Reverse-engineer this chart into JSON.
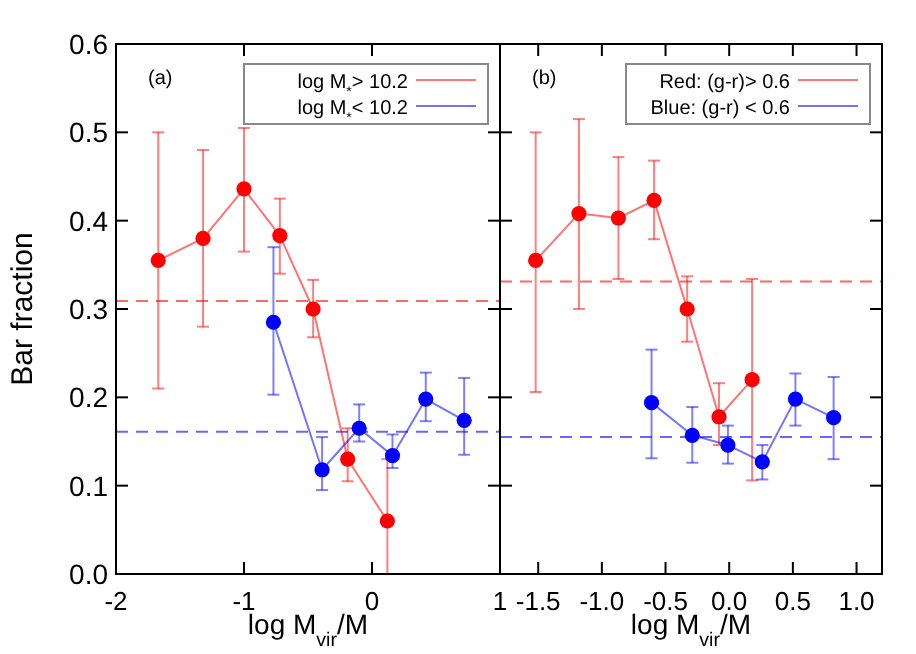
{
  "chart_data": [
    {
      "type": "line",
      "xlabel": "log M$_{vir}$/M",
      "ylabel": "Bar fraction",
      "xlim": [
        -2,
        1
      ],
      "xticks": [
        -2,
        -1,
        0,
        1
      ],
      "ylim": [
        0,
        0.6
      ],
      "yticks": [
        {
          "value": 0,
          "label": "0.0"
        },
        0.1,
        0.2,
        0.3,
        0.4,
        0.5,
        0.6
      ],
      "grid": false,
      "legend": "top right",
      "marker": "circle",
      "line_style": "solid",
      "annotations": [
        "(a)"
      ],
      "series": [
        {
          "name": "log M$_{*}$> 10.2",
          "color": "#ff0000",
          "x": [
            -1.67,
            -1.32,
            -1.0,
            -0.72,
            -0.46,
            -0.19,
            0.12
          ],
          "values": [
            0.355,
            0.38,
            0.436,
            0.383,
            0.3,
            0.13,
            0.06
          ],
          "errors": [
            [
              0.21,
              0.5
            ],
            [
              0.28,
              0.48
            ],
            [
              0.365,
              0.505
            ],
            [
              0.34,
              0.425
            ],
            [
              0.268,
              0.333
            ],
            [
              0.105,
              0.165
            ],
            [
              0,
              0.13
            ]
          ]
        },
        {
          "name": "log M$_{*}$< 10.2",
          "color": "#0000ff",
          "x": [
            -0.77,
            -0.39,
            -0.1,
            0.16,
            0.42,
            0.72
          ],
          "values": [
            0.285,
            0.118,
            0.165,
            0.134,
            0.198,
            0.174
          ],
          "errors": [
            [
              0.203,
              0.37
            ],
            [
              0.095,
              0.155
            ],
            [
              0.15,
              0.192
            ],
            [
              0.12,
              0.158
            ],
            [
              0.173,
              0.228
            ],
            [
              0.135,
              0.222
            ]
          ]
        }
      ],
      "ref_lines": [
        {
          "axis": "y",
          "value": 0.309,
          "color": "#ff0000",
          "line_style": "dashed"
        },
        {
          "axis": "y",
          "value": 0.161,
          "color": "#0000ff",
          "line_style": "dashed"
        }
      ]
    },
    {
      "type": "line",
      "xlabel": "log M$_{vir}$/M",
      "xlim": [
        -1.8,
        1.2
      ],
      "xticks": [
        -1.5,
        {
          "value": -1,
          "label": "-1.0"
        },
        -0.5,
        {
          "value": 0,
          "label": "0.0"
        },
        0.5,
        {
          "value": 1,
          "label": "1.0"
        }
      ],
      "ylim": [
        0,
        0.6
      ],
      "yticks": [
        0,
        0.1,
        0.2,
        0.3,
        0.4,
        0.5,
        0.6
      ],
      "tick_labels": "x",
      "grid": false,
      "legend": "top right",
      "marker": "circle",
      "line_style": "solid",
      "annotations": [
        "(b)"
      ],
      "series": [
        {
          "name": "Red: (g-r)> 0.6",
          "color": "#ff0000",
          "x": [
            -1.52,
            -1.18,
            -0.87,
            -0.59,
            -0.33,
            -0.08,
            0.18
          ],
          "values": [
            0.355,
            0.408,
            0.403,
            0.423,
            0.3,
            0.178,
            0.22
          ],
          "errors": [
            [
              0.206,
              0.5
            ],
            [
              0.3,
              0.515
            ],
            [
              0.334,
              0.472
            ],
            [
              0.379,
              0.468
            ],
            [
              0.263,
              0.337
            ],
            [
              0.146,
              0.216
            ],
            [
              0.106,
              0.334
            ]
          ]
        },
        {
          "name": "Blue: (g-r) < 0.6",
          "color": "#0000ff",
          "x": [
            -0.61,
            -0.29,
            -0.01,
            0.26,
            0.52,
            0.82
          ],
          "values": [
            0.194,
            0.157,
            0.146,
            0.127,
            0.198,
            0.177
          ],
          "errors": [
            [
              0.131,
              0.254
            ],
            [
              0.126,
              0.189
            ],
            [
              0.125,
              0.168
            ],
            [
              0.107,
              0.146
            ],
            [
              0.168,
              0.227
            ],
            [
              0.13,
              0.223
            ]
          ]
        }
      ],
      "ref_lines": [
        {
          "axis": "y",
          "value": 0.331,
          "color": "#ff0000",
          "line_style": "dashed"
        },
        {
          "axis": "y",
          "value": 0.155,
          "color": "#0000ff",
          "line_style": "dashed"
        }
      ]
    }
  ]
}
